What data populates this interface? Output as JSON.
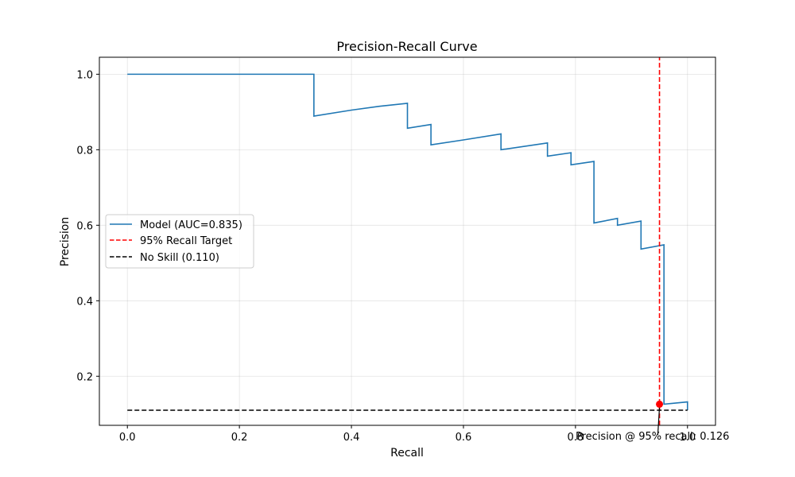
{
  "chart_data": {
    "type": "line",
    "title": "Precision-Recall Curve",
    "xlabel": "Recall",
    "ylabel": "Precision",
    "xlim": [
      -0.05,
      1.05
    ],
    "ylim": [
      0.07,
      1.045
    ],
    "grid": true,
    "legend_placement": "center-left",
    "x_ticks": [
      0.0,
      0.2,
      0.4,
      0.6,
      0.8,
      1.0
    ],
    "x_tick_labels": [
      "0.0",
      "0.2",
      "0.4",
      "0.6",
      "0.8",
      "1.0"
    ],
    "y_ticks": [
      0.2,
      0.4,
      0.6,
      0.8,
      1.0
    ],
    "y_tick_labels": [
      "0.2",
      "0.4",
      "0.6",
      "0.8",
      "1.0"
    ],
    "series": [
      {
        "name": "Model (AUC=0.835)",
        "color": "#1f77b4",
        "style": "solid",
        "x": [
          0.0,
          0.333,
          0.333,
          0.4,
          0.45,
          0.5,
          0.5,
          0.542,
          0.542,
          0.6,
          0.667,
          0.667,
          0.75,
          0.75,
          0.792,
          0.792,
          0.833,
          0.833,
          0.875,
          0.875,
          0.917,
          0.917,
          0.958,
          0.958,
          1.0,
          1.0
        ],
        "y": [
          1.0,
          1.0,
          0.889,
          0.905,
          0.915,
          0.923,
          0.857,
          0.867,
          0.813,
          0.826,
          0.842,
          0.8,
          0.818,
          0.783,
          0.792,
          0.76,
          0.769,
          0.606,
          0.618,
          0.6,
          0.611,
          0.537,
          0.548,
          0.126,
          0.132,
          0.11
        ]
      },
      {
        "name": "95% Recall Target",
        "color": "#ff0000",
        "style": "dashed",
        "x": [
          0.95,
          0.95
        ],
        "y": [
          0.07,
          1.045
        ]
      },
      {
        "name": "No Skill (0.110)",
        "color": "#000000",
        "style": "dashed",
        "x": [
          0.0,
          1.0
        ],
        "y": [
          0.11,
          0.11
        ]
      }
    ],
    "marker": {
      "x": 0.95,
      "y": 0.126,
      "color": "#ff0000"
    },
    "annotation": {
      "text": "Precision @ 95% recall: 0.126",
      "arrow_from": [
        0.947,
        0.07
      ],
      "arrow_to": [
        0.95,
        0.126
      ]
    }
  }
}
